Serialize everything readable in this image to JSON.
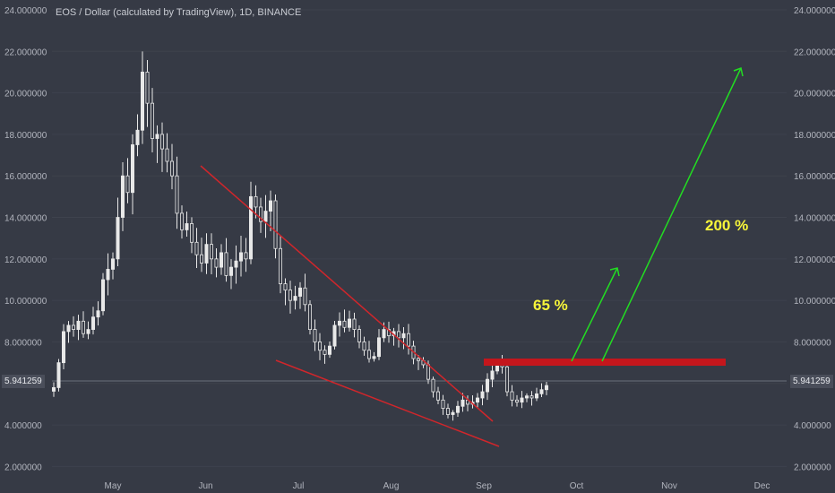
{
  "title": "EOS / Dollar (calculated by TradingView), 1D, BINANCE",
  "annotations": {
    "small_target": "65 %",
    "big_target": "200 %"
  },
  "current_price_label": "5.941259",
  "chart_data": {
    "type": "candlestick",
    "x_labels": [
      "May",
      "Jun",
      "Jul",
      "Aug",
      "Sep",
      "Oct",
      "Nov",
      "Dec"
    ],
    "y_ticks": [
      "2.000000",
      "4.000000",
      "6.000000",
      "8.000000",
      "10.000000",
      "12.000000",
      "14.000000",
      "16.000000",
      "18.000000",
      "20.000000",
      "22.000000",
      "24.000000"
    ],
    "ylim": [
      1.5,
      24.3
    ],
    "current_price": 5.941259,
    "background_color": "#363a45",
    "candle_color": "#e8e8e8",
    "trendline_color": "#d0262b",
    "arrow_color": "#22dd22",
    "text_color": "#f7f53a",
    "closes_approx": [
      5.8,
      7.0,
      8.5,
      8.8,
      8.6,
      9.0,
      8.4,
      8.6,
      9.2,
      9.5,
      11.0,
      11.5,
      12.0,
      14.0,
      16.0,
      15.2,
      17.5,
      18.2,
      21.0,
      19.5,
      17.8,
      18.0,
      17.3,
      16.7,
      16.0,
      14.2,
      13.4,
      13.7,
      12.8,
      12.2,
      11.8,
      12.7,
      12.0,
      11.6,
      12.3,
      11.2,
      11.6,
      11.9,
      12.3,
      12.0,
      15.0,
      14.5,
      13.8,
      14.3,
      14.8,
      12.5,
      10.8,
      10.5,
      10.0,
      10.2,
      10.6,
      9.8,
      8.6,
      8.0,
      7.6,
      7.4,
      7.8,
      8.8,
      9.0,
      8.7,
      9.1,
      8.6,
      8.0,
      7.6,
      7.2,
      7.3,
      8.2,
      8.6,
      8.3,
      8.5,
      8.2,
      8.4,
      7.8,
      7.2,
      7.1,
      6.9,
      6.2,
      5.6,
      5.2,
      4.8,
      4.5,
      4.6,
      4.9,
      5.2,
      5.0,
      5.1,
      5.3,
      5.6,
      6.2,
      6.6,
      6.9,
      6.8,
      5.6,
      5.2,
      5.1,
      5.3,
      5.4,
      5.3,
      5.5,
      5.7,
      5.9
    ]
  }
}
